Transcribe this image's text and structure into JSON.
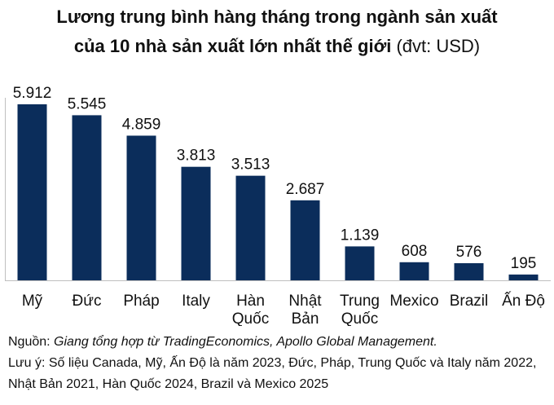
{
  "title_line1": "Lương trung bình hàng tháng trong ngành sản xuất",
  "title_line2_bold": "của 10 nhà sản xuất lớn nhất thế giới",
  "title_line2_unit": "(đvt: USD)",
  "source_prefix": "Nguồn: ",
  "source_text": "Giang tổng hợp từ TradingEconomics, Apollo Global Management.",
  "note": "Lưu ý: Số liệu Canada, Mỹ, Ấn Độ là năm 2023, Đức, Pháp, Trung Quốc và Italy năm 2022, Nhật Bản 2021, Hàn Quốc 2024, Brazil và Mexico 2025",
  "colors": {
    "bar": "#0b2d5b",
    "axis": "#bfbfbf"
  },
  "chart_data": {
    "type": "bar",
    "categories": [
      [
        "Mỹ"
      ],
      [
        "Đức"
      ],
      [
        "Pháp"
      ],
      [
        "Italy"
      ],
      [
        "Hàn",
        "Quốc"
      ],
      [
        "Nhật",
        "Bản"
      ],
      [
        "Trung",
        "Quốc"
      ],
      [
        "Mexico"
      ],
      [
        "Brazil"
      ],
      [
        "Ấn Độ"
      ]
    ],
    "values": [
      5912,
      5545,
      4859,
      3813,
      3513,
      2687,
      1139,
      608,
      576,
      195
    ],
    "value_labels": [
      "5.912",
      "5.545",
      "4.859",
      "3.813",
      "3.513",
      "2.687",
      "1.139",
      "608",
      "576",
      "195"
    ],
    "ylim": [
      0,
      5912
    ],
    "grid": false,
    "legend": "none"
  }
}
